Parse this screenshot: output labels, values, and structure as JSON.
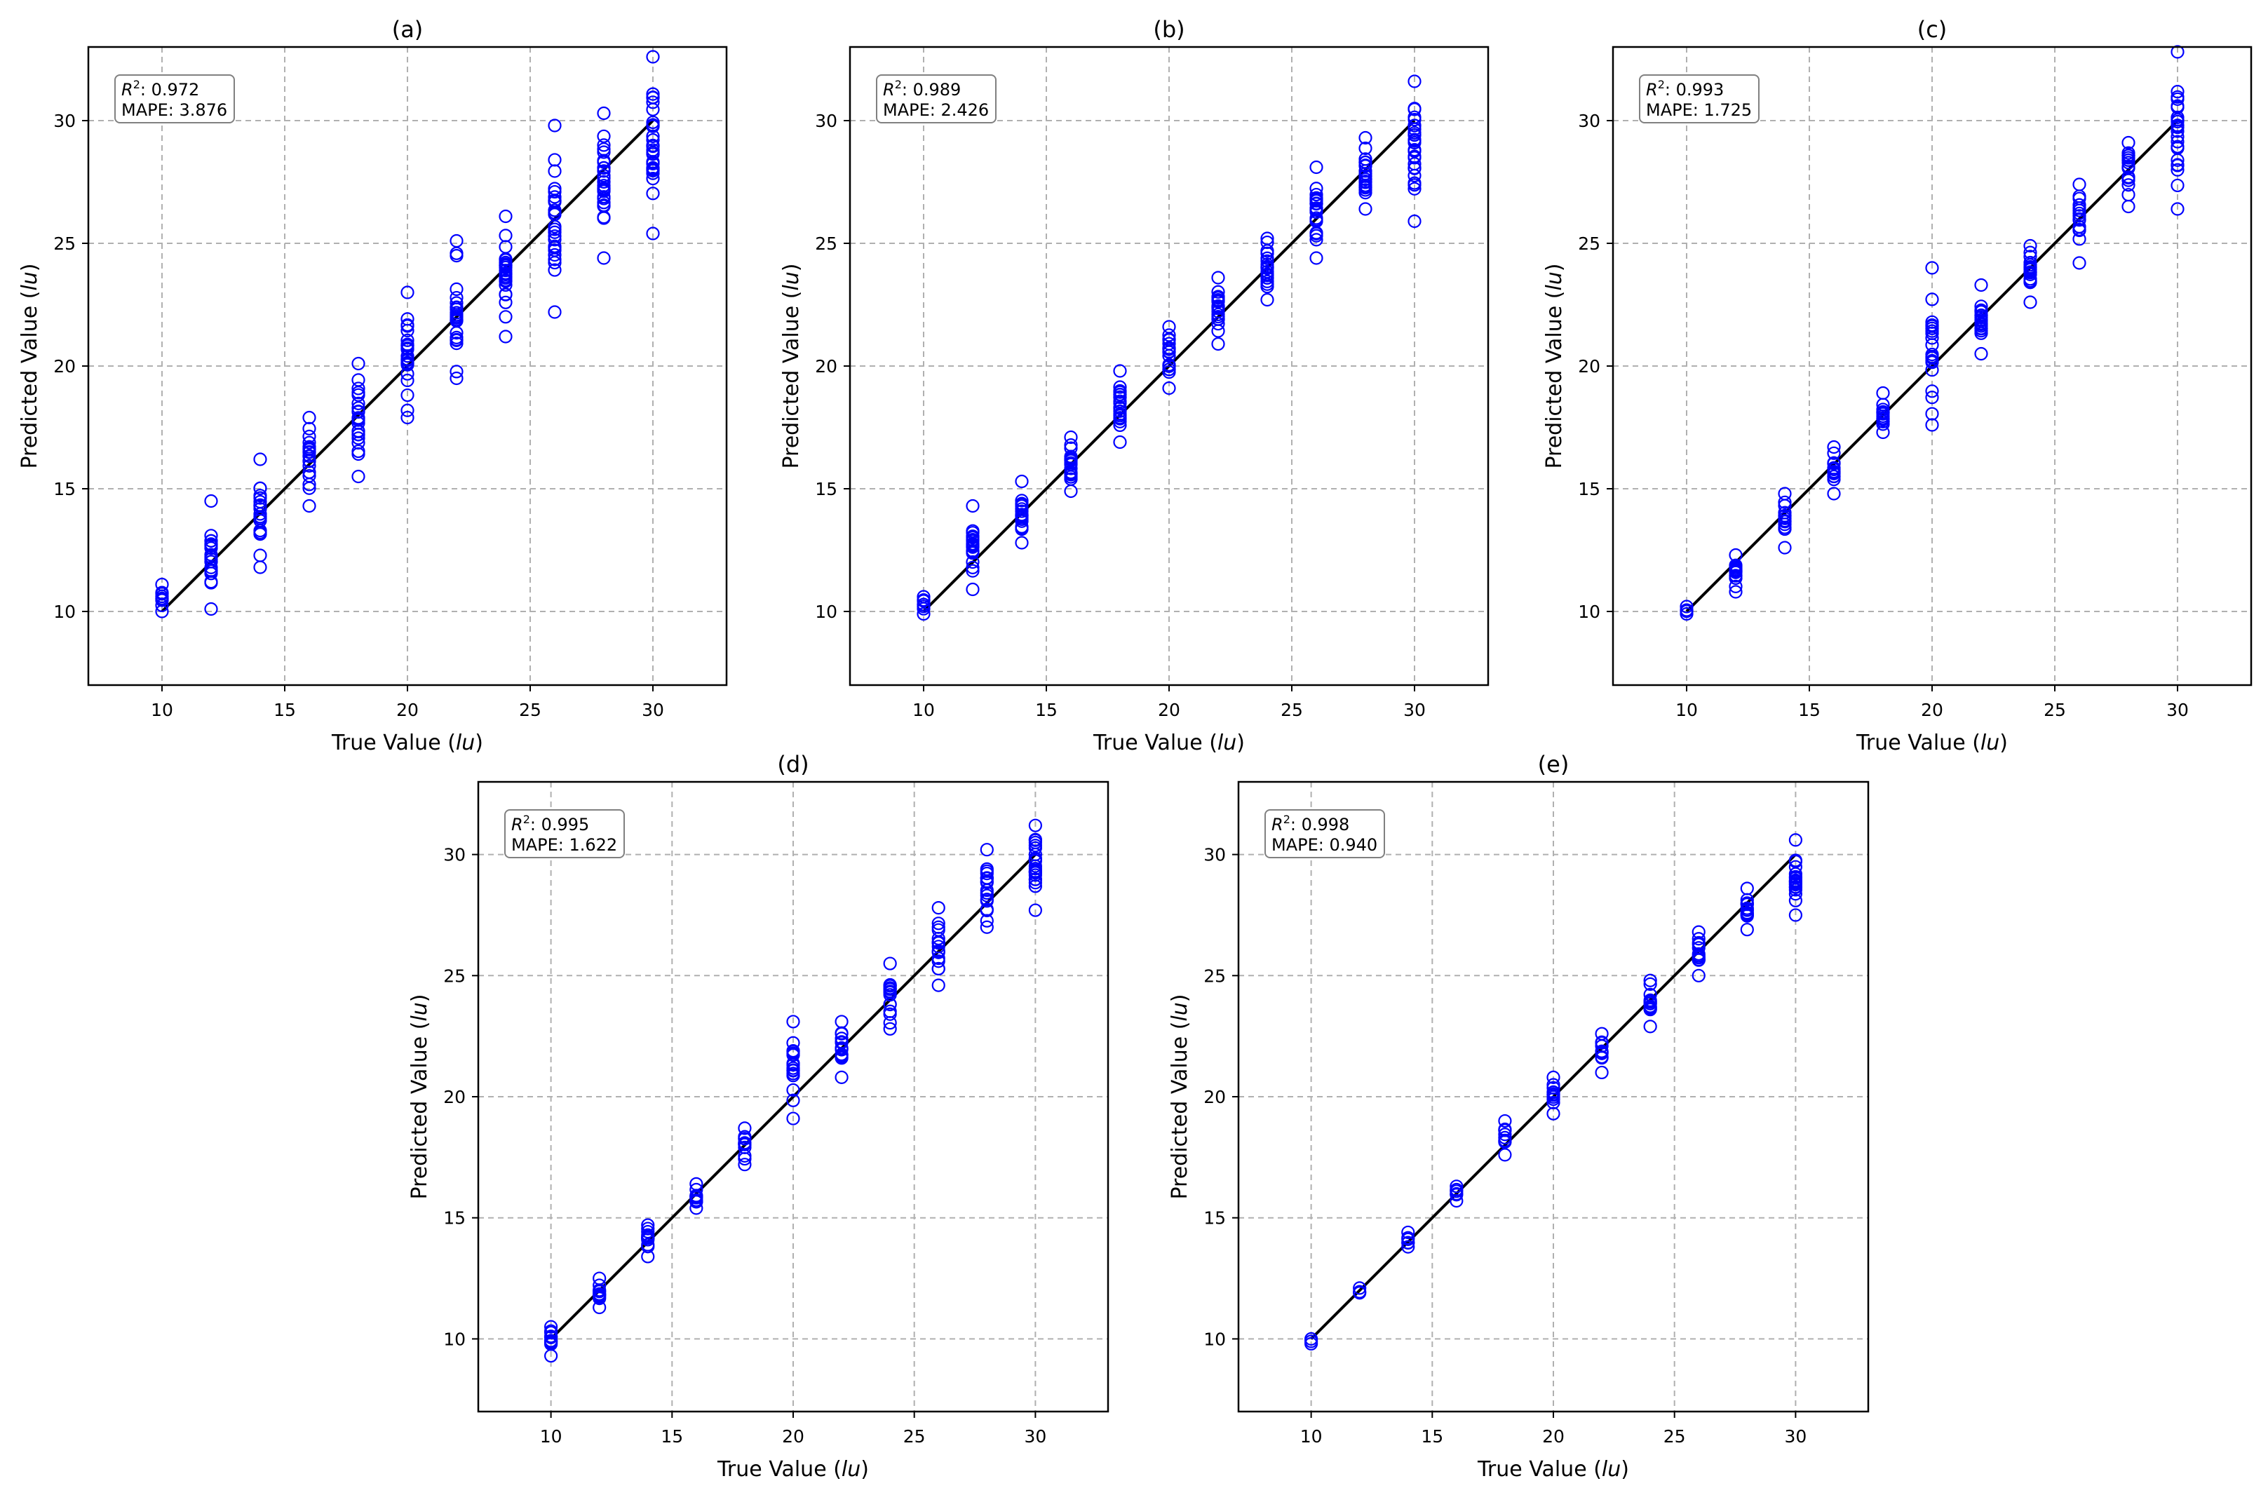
{
  "figure": {
    "marker_color": "#0000ff",
    "fit_line_color": "#000000",
    "grid_color": "#b0b0b0"
  },
  "chart_data": [
    {
      "type": "scatter",
      "title": "(a)",
      "xlabel": "True Value (lu)",
      "ylabel": "Predicted Value (lu)",
      "xlim": [
        7,
        33
      ],
      "ylim": [
        7,
        33
      ],
      "xticks": [
        10,
        15,
        20,
        25,
        30
      ],
      "yticks": [
        10,
        15,
        20,
        25,
        30
      ],
      "grid": true,
      "identity_line": [
        [
          10,
          10
        ],
        [
          30,
          30
        ]
      ],
      "metrics": {
        "r2_label": "R",
        "r2_exp": "2",
        "r2_value": ": 0.972",
        "mape": "MAPE: 3.876"
      },
      "groups": [
        {
          "x": 10,
          "min": 10.0,
          "max": 11.1,
          "n": 10
        },
        {
          "x": 12,
          "min": 10.1,
          "max": 14.5,
          "n": 20
        },
        {
          "x": 14,
          "min": 11.8,
          "max": 16.2,
          "n": 20
        },
        {
          "x": 16,
          "min": 14.3,
          "max": 17.9,
          "n": 20
        },
        {
          "x": 18,
          "min": 15.5,
          "max": 20.1,
          "n": 22
        },
        {
          "x": 20,
          "min": 17.9,
          "max": 23.0,
          "n": 24
        },
        {
          "x": 22,
          "min": 19.5,
          "max": 25.1,
          "n": 24
        },
        {
          "x": 24,
          "min": 21.2,
          "max": 26.1,
          "n": 24
        },
        {
          "x": 26,
          "min": 22.2,
          "max": 29.8,
          "n": 26
        },
        {
          "x": 28,
          "min": 24.4,
          "max": 30.3,
          "n": 26
        },
        {
          "x": 30,
          "min": 25.4,
          "max": 32.6,
          "n": 30
        }
      ]
    },
    {
      "type": "scatter",
      "title": "(b)",
      "xlabel": "True Value (lu)",
      "ylabel": "Predicted Value (lu)",
      "xlim": [
        7,
        33
      ],
      "ylim": [
        7,
        33
      ],
      "xticks": [
        10,
        15,
        20,
        25,
        30
      ],
      "yticks": [
        10,
        15,
        20,
        25,
        30
      ],
      "grid": true,
      "identity_line": [
        [
          10,
          10
        ],
        [
          30,
          30
        ]
      ],
      "metrics": {
        "r2_label": "R",
        "r2_exp": "2",
        "r2_value": ": 0.989",
        "mape": "MAPE: 2.426"
      },
      "groups": [
        {
          "x": 10,
          "min": 9.9,
          "max": 10.6,
          "n": 8
        },
        {
          "x": 12,
          "min": 10.9,
          "max": 14.3,
          "n": 18
        },
        {
          "x": 14,
          "min": 12.8,
          "max": 15.3,
          "n": 18
        },
        {
          "x": 16,
          "min": 14.9,
          "max": 17.1,
          "n": 18
        },
        {
          "x": 18,
          "min": 16.9,
          "max": 19.8,
          "n": 20
        },
        {
          "x": 20,
          "min": 19.1,
          "max": 21.6,
          "n": 20
        },
        {
          "x": 22,
          "min": 20.9,
          "max": 23.6,
          "n": 20
        },
        {
          "x": 24,
          "min": 22.7,
          "max": 25.2,
          "n": 20
        },
        {
          "x": 26,
          "min": 24.4,
          "max": 28.1,
          "n": 22
        },
        {
          "x": 28,
          "min": 26.4,
          "max": 29.3,
          "n": 22
        },
        {
          "x": 30,
          "min": 25.9,
          "max": 31.6,
          "n": 28
        }
      ]
    },
    {
      "type": "scatter",
      "title": "(c)",
      "xlabel": "True Value (lu)",
      "ylabel": "Predicted Value (lu)",
      "xlim": [
        7,
        33
      ],
      "ylim": [
        7,
        33
      ],
      "xticks": [
        10,
        15,
        20,
        25,
        30
      ],
      "yticks": [
        10,
        15,
        20,
        25,
        30
      ],
      "grid": true,
      "identity_line": [
        [
          10,
          10
        ],
        [
          30,
          30
        ]
      ],
      "metrics": {
        "r2_label": "R",
        "r2_exp": "2",
        "r2_value": ": 0.993",
        "mape": "MAPE: 1.725"
      },
      "groups": [
        {
          "x": 10,
          "min": 9.9,
          "max": 10.2,
          "n": 4
        },
        {
          "x": 12,
          "min": 10.8,
          "max": 12.3,
          "n": 14
        },
        {
          "x": 14,
          "min": 12.6,
          "max": 14.8,
          "n": 14
        },
        {
          "x": 16,
          "min": 14.8,
          "max": 16.7,
          "n": 14
        },
        {
          "x": 18,
          "min": 17.3,
          "max": 18.9,
          "n": 16
        },
        {
          "x": 20,
          "min": 17.6,
          "max": 24.0,
          "n": 20
        },
        {
          "x": 22,
          "min": 20.5,
          "max": 23.3,
          "n": 18
        },
        {
          "x": 24,
          "min": 22.6,
          "max": 24.9,
          "n": 18
        },
        {
          "x": 26,
          "min": 24.2,
          "max": 27.4,
          "n": 18
        },
        {
          "x": 28,
          "min": 26.5,
          "max": 29.1,
          "n": 18
        },
        {
          "x": 30,
          "min": 26.4,
          "max": 32.8,
          "n": 24
        }
      ]
    },
    {
      "type": "scatter",
      "title": "(d)",
      "xlabel": "True Value (lu)",
      "ylabel": "Predicted Value (lu)",
      "xlim": [
        7,
        33
      ],
      "ylim": [
        7,
        33
      ],
      "xticks": [
        10,
        15,
        20,
        25,
        30
      ],
      "yticks": [
        10,
        15,
        20,
        25,
        30
      ],
      "grid": true,
      "identity_line": [
        [
          10,
          10
        ],
        [
          30,
          30
        ]
      ],
      "metrics": {
        "r2_label": "R",
        "r2_exp": "2",
        "r2_value": ": 0.995",
        "mape": "MAPE: 1.622"
      },
      "groups": [
        {
          "x": 10,
          "min": 9.3,
          "max": 10.5,
          "n": 12
        },
        {
          "x": 12,
          "min": 11.3,
          "max": 12.5,
          "n": 12
        },
        {
          "x": 14,
          "min": 13.4,
          "max": 14.7,
          "n": 12
        },
        {
          "x": 16,
          "min": 15.4,
          "max": 16.4,
          "n": 12
        },
        {
          "x": 18,
          "min": 17.2,
          "max": 18.7,
          "n": 14
        },
        {
          "x": 20,
          "min": 19.1,
          "max": 23.1,
          "n": 16
        },
        {
          "x": 22,
          "min": 20.8,
          "max": 23.1,
          "n": 16
        },
        {
          "x": 24,
          "min": 22.8,
          "max": 25.5,
          "n": 16
        },
        {
          "x": 26,
          "min": 24.6,
          "max": 27.8,
          "n": 18
        },
        {
          "x": 28,
          "min": 27.0,
          "max": 30.2,
          "n": 18
        },
        {
          "x": 30,
          "min": 27.7,
          "max": 31.2,
          "n": 22
        }
      ]
    },
    {
      "type": "scatter",
      "title": "(e)",
      "xlabel": "True Value (lu)",
      "ylabel": "Predicted Value (lu)",
      "xlim": [
        7,
        33
      ],
      "ylim": [
        7,
        33
      ],
      "xticks": [
        10,
        15,
        20,
        25,
        30
      ],
      "yticks": [
        10,
        15,
        20,
        25,
        30
      ],
      "grid": true,
      "identity_line": [
        [
          10,
          10
        ],
        [
          30,
          30
        ]
      ],
      "metrics": {
        "r2_label": "R",
        "r2_exp": "2",
        "r2_value": ": 0.998",
        "mape": "MAPE: 0.940"
      },
      "groups": [
        {
          "x": 10,
          "min": 9.8,
          "max": 10.0,
          "n": 3
        },
        {
          "x": 12,
          "min": 11.9,
          "max": 12.1,
          "n": 3
        },
        {
          "x": 14,
          "min": 13.8,
          "max": 14.4,
          "n": 6
        },
        {
          "x": 16,
          "min": 15.7,
          "max": 16.3,
          "n": 6
        },
        {
          "x": 18,
          "min": 17.6,
          "max": 19.0,
          "n": 10
        },
        {
          "x": 20,
          "min": 19.3,
          "max": 20.8,
          "n": 12
        },
        {
          "x": 22,
          "min": 21.0,
          "max": 22.6,
          "n": 12
        },
        {
          "x": 24,
          "min": 22.9,
          "max": 24.8,
          "n": 14
        },
        {
          "x": 26,
          "min": 25.0,
          "max": 26.8,
          "n": 14
        },
        {
          "x": 28,
          "min": 26.9,
          "max": 28.6,
          "n": 14
        },
        {
          "x": 30,
          "min": 27.5,
          "max": 30.6,
          "n": 18
        }
      ]
    }
  ]
}
